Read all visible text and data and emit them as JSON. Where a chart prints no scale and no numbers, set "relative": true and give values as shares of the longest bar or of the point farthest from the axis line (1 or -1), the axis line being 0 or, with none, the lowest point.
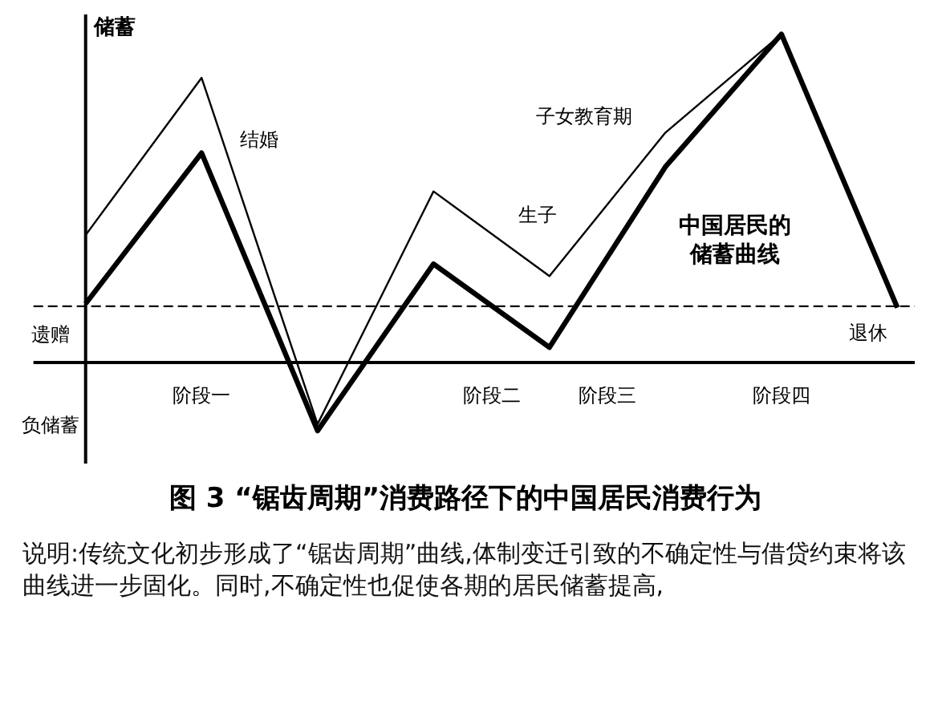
{
  "chart_data": {
    "type": "line",
    "relative": true,
    "title": "图 3 “锯齿周期”消费路径下的中国居民消费行为",
    "ylabel": "储蓄",
    "legend": false,
    "categories": [
      null,
      null,
      null,
      null,
      null,
      null,
      null,
      null
    ],
    "series": [
      {
        "color": "#000000",
        "values": [
          0.388,
          0.867,
          -0.188,
          0.521,
          0.263,
          0.7,
          1,
          0.167
        ]
      },
      {
        "name": "中国居民的储蓄曲线",
        "color": "#000000",
        "values": [
          0.179,
          0.638,
          -0.208,
          0.3,
          0.046,
          0.596,
          1,
          0.167
        ]
      }
    ],
    "ref_lines": [
      {
        "axis": "y",
        "value": 0.171,
        "line_style": "dashed"
      }
    ],
    "annotations": [
      "结婚",
      "生子",
      "子女教育期",
      "退休",
      "遗赠",
      "负储蓄",
      "阶段一",
      "阶段二",
      "阶段三",
      "阶段四",
      "说明:传统文化初步形成了“锯齿周期”曲线,体制变迁引致的不确定性与借贷约束将该曲线进一步固化。同时,不确定性也促使各期的居民储蓄提高,"
    ]
  }
}
